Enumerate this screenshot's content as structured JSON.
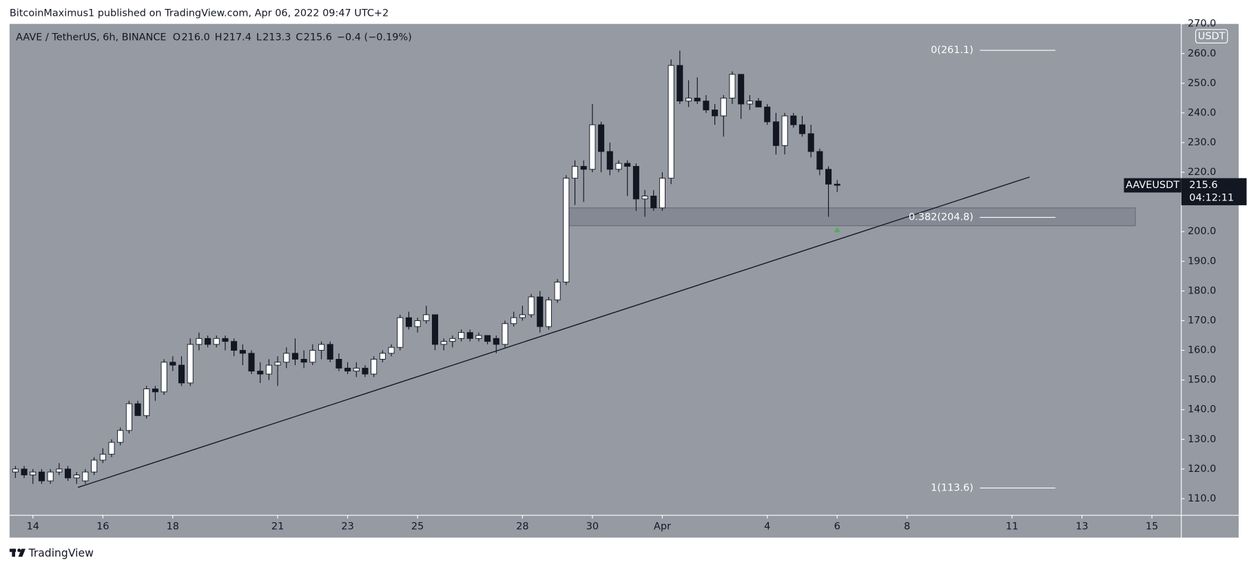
{
  "header": {
    "title": "BitcoinMaximus1 published on TradingView.com, Apr 06, 2022 09:47 UTC+2"
  },
  "footer": {
    "brand": "TradingView"
  },
  "chart_data": {
    "type": "candlestick",
    "title": "AAVE / TetherUS, 6h, BINANCE",
    "legend": [
      {
        "key": "O",
        "value": "216.0"
      },
      {
        "key": "H",
        "value": "217.4"
      },
      {
        "key": "L",
        "value": "213.3"
      },
      {
        "key": "C",
        "value": "215.6"
      }
    ],
    "change": "−0.4 (−0.19%)",
    "currency": "USDT",
    "last_price": {
      "symbol": "AAVEUSDT",
      "price": "215.6",
      "countdown": "04:12:11",
      "value": 215.6
    },
    "up_color": "#ffffff",
    "down_color": "#131722",
    "background": "#959aa3",
    "open": [
      119,
      120,
      118,
      119,
      116,
      119,
      120,
      117,
      116,
      119,
      123,
      125,
      129,
      133,
      142,
      138,
      147,
      146,
      156,
      155,
      149,
      162,
      164,
      162,
      164,
      163,
      160,
      159,
      153,
      152,
      155,
      156,
      159,
      157,
      156,
      160,
      162,
      157,
      154,
      153,
      154,
      152,
      157,
      159,
      161,
      171,
      168,
      170,
      172,
      162,
      163,
      164,
      166,
      164,
      165,
      164,
      162,
      169,
      171,
      172,
      178,
      168,
      177,
      183,
      218,
      222,
      221,
      236,
      227,
      221,
      223,
      222,
      211,
      212,
      208,
      218,
      256,
      244,
      245,
      244,
      241,
      239,
      245,
      253,
      243,
      244,
      242,
      237,
      229,
      239,
      236,
      233,
      227,
      221,
      216
    ],
    "high": [
      121,
      121,
      120,
      120,
      120,
      122,
      121,
      119,
      120,
      124,
      127,
      130,
      134,
      143,
      143,
      148,
      148,
      157,
      158,
      158,
      164,
      166,
      165,
      165,
      165,
      164,
      162,
      160,
      156,
      157,
      158,
      161,
      164,
      160,
      162,
      163,
      163,
      159,
      156,
      156,
      155,
      158,
      160,
      162,
      172,
      173,
      171,
      175,
      172,
      164,
      165,
      167,
      167,
      166,
      165,
      165,
      170,
      173,
      175,
      179,
      180,
      178,
      184,
      219,
      224,
      224,
      243,
      237,
      230,
      224,
      224,
      223,
      214,
      214,
      220,
      258,
      261,
      251,
      252,
      246,
      243,
      246,
      254,
      253,
      246,
      245,
      243,
      240,
      240,
      240,
      239,
      236,
      228,
      222,
      217.4
    ],
    "low": [
      117,
      117,
      115,
      115,
      115,
      118,
      116,
      115,
      115,
      118,
      122,
      124,
      128,
      132,
      138,
      137,
      143,
      145,
      153,
      148,
      148,
      160,
      161,
      161,
      160,
      158,
      155,
      152,
      149,
      150,
      148,
      154,
      155,
      154,
      155,
      157,
      156,
      153,
      152,
      151,
      151,
      151,
      156,
      158,
      160,
      167,
      166,
      169,
      160,
      160,
      161,
      163,
      163,
      163,
      162,
      159,
      161,
      168,
      170,
      171,
      166,
      167,
      176,
      182,
      209,
      210,
      220,
      220,
      219,
      220,
      212,
      207,
      205,
      207,
      207,
      216,
      243,
      242,
      243,
      240,
      236,
      232,
      243,
      238,
      241,
      242,
      236,
      226,
      226,
      235,
      232,
      225,
      219,
      205,
      213.3
    ],
    "close": [
      120,
      118,
      119,
      116,
      119,
      120,
      117,
      118,
      119,
      123,
      125,
      129,
      133,
      142,
      138,
      147,
      146,
      156,
      155,
      149,
      162,
      164,
      162,
      164,
      163,
      160,
      159,
      153,
      152,
      155,
      156,
      159,
      157,
      156,
      160,
      162,
      157,
      154,
      153,
      154,
      152,
      157,
      159,
      161,
      171,
      168,
      170,
      172,
      162,
      163,
      164,
      166,
      164,
      165,
      163,
      162,
      169,
      171,
      172,
      178,
      168,
      177,
      183,
      218,
      222,
      221,
      236,
      227,
      221,
      223,
      222,
      211,
      212,
      208,
      218,
      256,
      244,
      245,
      244,
      241,
      239,
      245,
      253,
      243,
      244,
      242,
      237,
      229,
      239,
      236,
      233,
      227,
      221,
      216,
      215.6
    ],
    "xlim": [
      -0.67,
      133.36
    ],
    "xticks": [
      {
        "value": 2,
        "label": "14"
      },
      {
        "value": 10,
        "label": "16"
      },
      {
        "value": 18,
        "label": "18"
      },
      {
        "value": 30,
        "label": "21"
      },
      {
        "value": 38,
        "label": "23"
      },
      {
        "value": 46,
        "label": "25"
      },
      {
        "value": 58,
        "label": "28"
      },
      {
        "value": 66,
        "label": "30"
      },
      {
        "value": 74,
        "label": "Apr"
      },
      {
        "value": 86,
        "label": "4"
      },
      {
        "value": 94,
        "label": "6"
      },
      {
        "value": 102,
        "label": "8"
      },
      {
        "value": 114,
        "label": "11"
      },
      {
        "value": 122,
        "label": "13"
      },
      {
        "value": 130,
        "label": "15"
      }
    ],
    "ylim": [
      104.4,
      270
    ],
    "yticks": [
      {
        "value": 110,
        "label": "110.0"
      },
      {
        "value": 120,
        "label": "120.0"
      },
      {
        "value": 130,
        "label": "130.0"
      },
      {
        "value": 140,
        "label": "140.0"
      },
      {
        "value": 150,
        "label": "150.0"
      },
      {
        "value": 160,
        "label": "160.0"
      },
      {
        "value": 170,
        "label": "170.0"
      },
      {
        "value": 180,
        "label": "180.0"
      },
      {
        "value": 190,
        "label": "190.0"
      },
      {
        "value": 200,
        "label": "200.0"
      },
      {
        "value": 210,
        "label": "210.0"
      },
      {
        "value": 220,
        "label": "220.0"
      },
      {
        "value": 230,
        "label": "230.0"
      },
      {
        "value": 240,
        "label": "240.0"
      },
      {
        "value": 250,
        "label": "250.0"
      },
      {
        "value": 260,
        "label": "260.0"
      },
      {
        "value": 270,
        "label": "270.0"
      }
    ],
    "fib_levels": [
      {
        "label": "0(261.1)",
        "value": 261.1
      },
      {
        "label": "0.382(204.8)",
        "value": 204.8
      },
      {
        "label": "1(113.6)",
        "value": 113.6
      }
    ],
    "zone": {
      "x": [
        63.1,
        128.1
      ],
      "y": [
        202,
        208
      ]
    },
    "trendline": {
      "x": [
        7.15,
        116.0
      ],
      "y": [
        113.8,
        218.4
      ]
    },
    "arrow": {
      "x": 94,
      "y": 200.6,
      "color": "#4caf50"
    }
  }
}
